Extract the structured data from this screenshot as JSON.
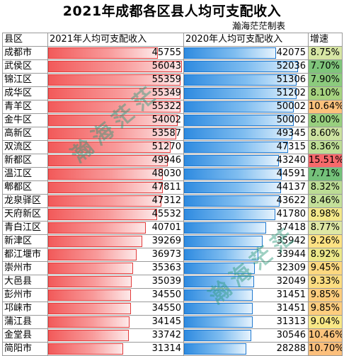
{
  "title": "2021年成都各区县人均可支配收入",
  "credit": "瀚海茫茫制表",
  "watermark": "瀚海茫茫",
  "headers": {
    "district": "县区",
    "y2021": "2021年人均可支配收入",
    "y2020": "2020年人均可支配收入",
    "growth": "增速"
  },
  "bar_max": 56500,
  "rows": [
    {
      "name": "成都市",
      "y2021": "45755",
      "y2020": "42075",
      "growth": "8.75%",
      "growth_color": "#d7e6a4"
    },
    {
      "name": "武侯区",
      "y2021": "56043",
      "y2020": "52036",
      "growth": "7.70%",
      "growth_color": "#7fc57b"
    },
    {
      "name": "锦江区",
      "y2021": "55359",
      "y2020": "51306",
      "growth": "7.90%",
      "growth_color": "#8ccb7d"
    },
    {
      "name": "成华区",
      "y2021": "55349",
      "y2020": "51202",
      "growth": "8.10%",
      "growth_color": "#a6d37f"
    },
    {
      "name": "青羊区",
      "y2021": "55322",
      "y2020": "50002",
      "growth": "10.64%",
      "growth_color": "#fcc17c"
    },
    {
      "name": "金牛区",
      "y2021": "54002",
      "y2020": "50002",
      "growth": "8.00%",
      "growth_color": "#98cf7e"
    },
    {
      "name": "高新区",
      "y2021": "53587",
      "y2020": "49345",
      "growth": "8.60%",
      "growth_color": "#cce2a0"
    },
    {
      "name": "双流区",
      "y2021": "51270",
      "y2020": "47315",
      "growth": "8.36%",
      "growth_color": "#bedd96"
    },
    {
      "name": "新都区",
      "y2021": "49946",
      "y2020": "43240",
      "growth": "15.51%",
      "growth_color": "#f8696b"
    },
    {
      "name": "温江区",
      "y2021": "48030",
      "y2020": "44591",
      "growth": "7.71%",
      "growth_color": "#74c17a"
    },
    {
      "name": "郫都区",
      "y2021": "47811",
      "y2020": "44137",
      "growth": "8.32%",
      "growth_color": "#bcdc95"
    },
    {
      "name": "龙泉驿区",
      "y2021": "47312",
      "y2020": "43622",
      "growth": "8.46%",
      "growth_color": "#c4e09a"
    },
    {
      "name": "天府新区",
      "y2021": "45532",
      "y2020": "41780",
      "growth": "8.98%",
      "growth_color": "#f3e88a"
    },
    {
      "name": "青白江区",
      "y2021": "40701",
      "y2020": "37418",
      "growth": "8.77%",
      "growth_color": "#dee7a5"
    },
    {
      "name": "新津区",
      "y2021": "39269",
      "y2020": "35942",
      "growth": "9.26%",
      "growth_color": "#fde283"
    },
    {
      "name": "都江堰市",
      "y2021": "36973",
      "y2020": "33944",
      "growth": "8.92%",
      "growth_color": "#ece88a"
    },
    {
      "name": "崇州市",
      "y2021": "35363",
      "y2020": "32309",
      "growth": "9.45%",
      "growth_color": "#fdd880"
    },
    {
      "name": "大邑县",
      "y2021": "35039",
      "y2020": "32049",
      "growth": "9.33%",
      "growth_color": "#fddd81"
    },
    {
      "name": "彭州市",
      "y2021": "34550",
      "y2020": "31451",
      "growth": "9.85%",
      "growth_color": "#fdcd7e"
    },
    {
      "name": "邛崃市",
      "y2021": "34550",
      "y2020": "31451",
      "growth": "9.85%",
      "growth_color": "#fdcd7e"
    },
    {
      "name": "蒲江县",
      "y2021": "34145",
      "y2020": "31313",
      "growth": "9.04%",
      "growth_color": "#f8e786"
    },
    {
      "name": "金堂县",
      "y2021": "33742",
      "y2020": "30546",
      "growth": "10.46%",
      "growth_color": "#fcc37c"
    },
    {
      "name": "简阳市",
      "y2021": "31314",
      "y2020": "28288",
      "growth": "10.70%",
      "growth_color": "#fcbf7b"
    }
  ]
}
